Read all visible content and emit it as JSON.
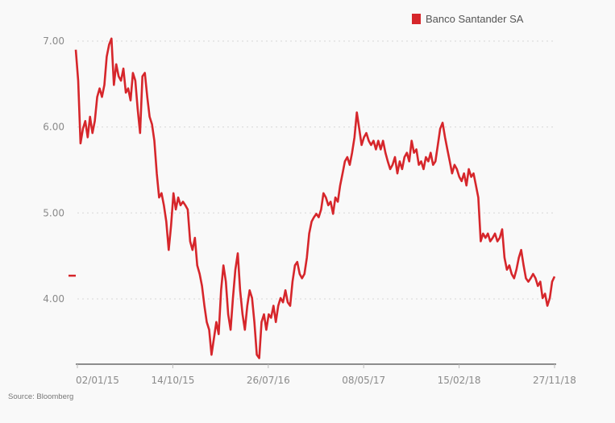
{
  "chart_data": {
    "type": "line",
    "title": "",
    "xlabel": "",
    "ylabel": "",
    "source": "Source: Bloomberg",
    "legend": {
      "label": "Banco Santander SA",
      "placement": "top-right"
    },
    "color": "#d6262b",
    "ylim": [
      3.24,
      7.0
    ],
    "yticks": [
      "7.00",
      "6.00",
      "5.00",
      "4.00"
    ],
    "ytick_values": [
      7,
      6,
      5,
      4
    ],
    "xticks": [
      "02/01/15",
      "14/10/15",
      "26/07/16",
      "08/05/17",
      "15/02/18",
      "27/11/18"
    ],
    "grid": true,
    "last_value_marker": 4.27,
    "series": [
      {
        "name": "Banco Santander SA",
        "x_start": "02/01/15",
        "x_end": "27/11/18",
        "values": [
          6.9,
          6.54,
          5.81,
          5.98,
          6.07,
          5.88,
          6.12,
          5.93,
          6.07,
          6.35,
          6.45,
          6.35,
          6.49,
          6.82,
          6.96,
          7.03,
          6.49,
          6.73,
          6.59,
          6.54,
          6.68,
          6.4,
          6.45,
          6.31,
          6.63,
          6.54,
          6.21,
          5.93,
          6.59,
          6.63,
          6.35,
          6.12,
          6.03,
          5.84,
          5.46,
          5.18,
          5.23,
          5.09,
          4.9,
          4.57,
          4.85,
          5.23,
          5.04,
          5.18,
          5.09,
          5.13,
          5.09,
          5.04,
          4.67,
          4.57,
          4.71,
          4.39,
          4.29,
          4.15,
          3.92,
          3.73,
          3.64,
          3.35,
          3.54,
          3.73,
          3.59,
          4.1,
          4.39,
          4.2,
          3.82,
          3.64,
          4.01,
          4.34,
          4.53,
          4.1,
          3.82,
          3.64,
          3.92,
          4.1,
          4.01,
          3.73,
          3.35,
          3.31,
          3.73,
          3.82,
          3.64,
          3.82,
          3.78,
          3.92,
          3.73,
          3.92,
          4.01,
          3.96,
          4.1,
          3.96,
          3.92,
          4.2,
          4.39,
          4.43,
          4.29,
          4.24,
          4.29,
          4.48,
          4.76,
          4.9,
          4.95,
          4.99,
          4.95,
          5.04,
          5.23,
          5.18,
          5.09,
          5.13,
          4.99,
          5.18,
          5.13,
          5.32,
          5.46,
          5.6,
          5.65,
          5.56,
          5.7,
          5.88,
          6.17,
          5.98,
          5.79,
          5.88,
          5.93,
          5.84,
          5.79,
          5.84,
          5.74,
          5.84,
          5.74,
          5.84,
          5.7,
          5.6,
          5.51,
          5.56,
          5.65,
          5.46,
          5.6,
          5.51,
          5.65,
          5.7,
          5.6,
          5.84,
          5.7,
          5.74,
          5.56,
          5.6,
          5.51,
          5.65,
          5.6,
          5.7,
          5.56,
          5.6,
          5.79,
          5.98,
          6.05,
          5.88,
          5.74,
          5.6,
          5.46,
          5.56,
          5.51,
          5.42,
          5.37,
          5.46,
          5.32,
          5.51,
          5.42,
          5.46,
          5.32,
          5.18,
          4.67,
          4.76,
          4.71,
          4.76,
          4.67,
          4.71,
          4.76,
          4.67,
          4.71,
          4.81,
          4.48,
          4.34,
          4.39,
          4.29,
          4.24,
          4.34,
          4.48,
          4.57,
          4.39,
          4.24,
          4.2,
          4.24,
          4.29,
          4.24,
          4.15,
          4.2,
          4.01,
          4.06,
          3.92,
          4.01,
          4.2,
          4.26
        ]
      }
    ]
  }
}
